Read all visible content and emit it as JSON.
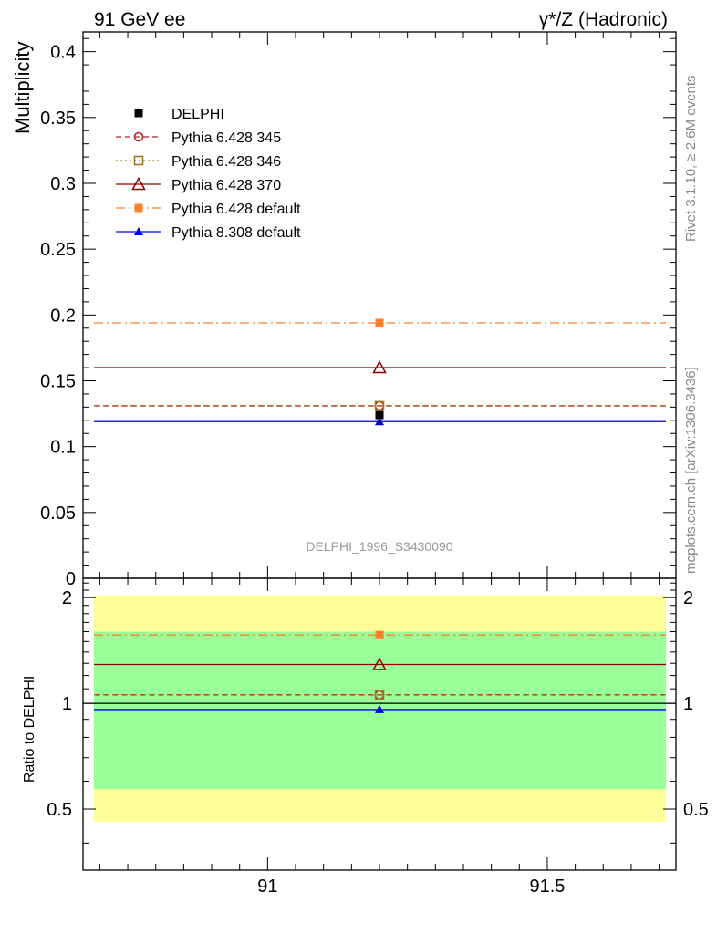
{
  "header": {
    "left": "91 GeV ee",
    "right": "γ*/Z (Hadronic)"
  },
  "side_text": {
    "rivet": "Rivet 3.1.10, ≥ 2.6M events",
    "mcplots": "mcplots.cern.ch [arXiv:1306.3436]"
  },
  "analysis_label": "DELPHI_1996_S3430090",
  "colors": {
    "yellow_band": "#ffff99",
    "green_band": "#99ff99",
    "axis": "#000000"
  },
  "chart_data": [
    {
      "type": "line",
      "panel": "main",
      "ylabel": "Multiplicity",
      "xlim": [
        90.67,
        91.73
      ],
      "ylim": [
        0,
        0.415
      ],
      "y_ticks": [
        0,
        0.05,
        0.1,
        0.15,
        0.2,
        0.25,
        0.3,
        0.35,
        0.4
      ],
      "y_tick_labels": [
        "0",
        "0.05",
        "0.1",
        "0.15",
        "0.2",
        "0.25",
        "0.3",
        "0.35",
        "0.4"
      ],
      "x_ticks": [
        91,
        91.5
      ],
      "x_point": 91.2,
      "legend_placement": "top-left",
      "series": [
        {
          "name": "DELPHI",
          "value": 0.124,
          "marker": "square-filled",
          "color": "#000000",
          "line": "none"
        },
        {
          "name": "Pythia 6.428 345",
          "value": 0.131,
          "marker": "circle-open",
          "color": "#b22222",
          "line": "dashed"
        },
        {
          "name": "Pythia 6.428 346",
          "value": 0.131,
          "marker": "square-open",
          "color": "#a07820",
          "line": "dotted"
        },
        {
          "name": "Pythia 6.428 370",
          "value": 0.16,
          "marker": "triangle-open",
          "color": "#8b0000",
          "line": "solid"
        },
        {
          "name": "Pythia 6.428 default",
          "value": 0.194,
          "marker": "square-filled",
          "color": "#ff7f2a",
          "line": "dashdot"
        },
        {
          "name": "Pythia 8.308 default",
          "value": 0.119,
          "marker": "triangle-filled",
          "color": "#0000dd",
          "line": "solid"
        }
      ]
    },
    {
      "type": "line",
      "panel": "ratio",
      "ylabel": "Ratio to DELPHI",
      "xlim": [
        90.67,
        91.73
      ],
      "ylim": [
        0.335,
        2.27
      ],
      "y_ticks": [
        0.5,
        1,
        2
      ],
      "y_tick_labels": [
        "0.5",
        "1",
        "2"
      ],
      "x_ticks": [
        91,
        91.5
      ],
      "x_tick_labels": [
        "91",
        "91.5"
      ],
      "bands": {
        "yellow": [
          0.46,
          2.03
        ],
        "green": [
          0.57,
          1.6
        ]
      },
      "series": [
        {
          "name": "Pythia 6.428 345",
          "value": 1.057
        },
        {
          "name": "Pythia 6.428 346",
          "value": 1.057
        },
        {
          "name": "Pythia 6.428 370",
          "value": 1.29
        },
        {
          "name": "Pythia 6.428 default",
          "value": 1.565
        },
        {
          "name": "Pythia 8.308 default",
          "value": 0.96
        }
      ]
    }
  ]
}
